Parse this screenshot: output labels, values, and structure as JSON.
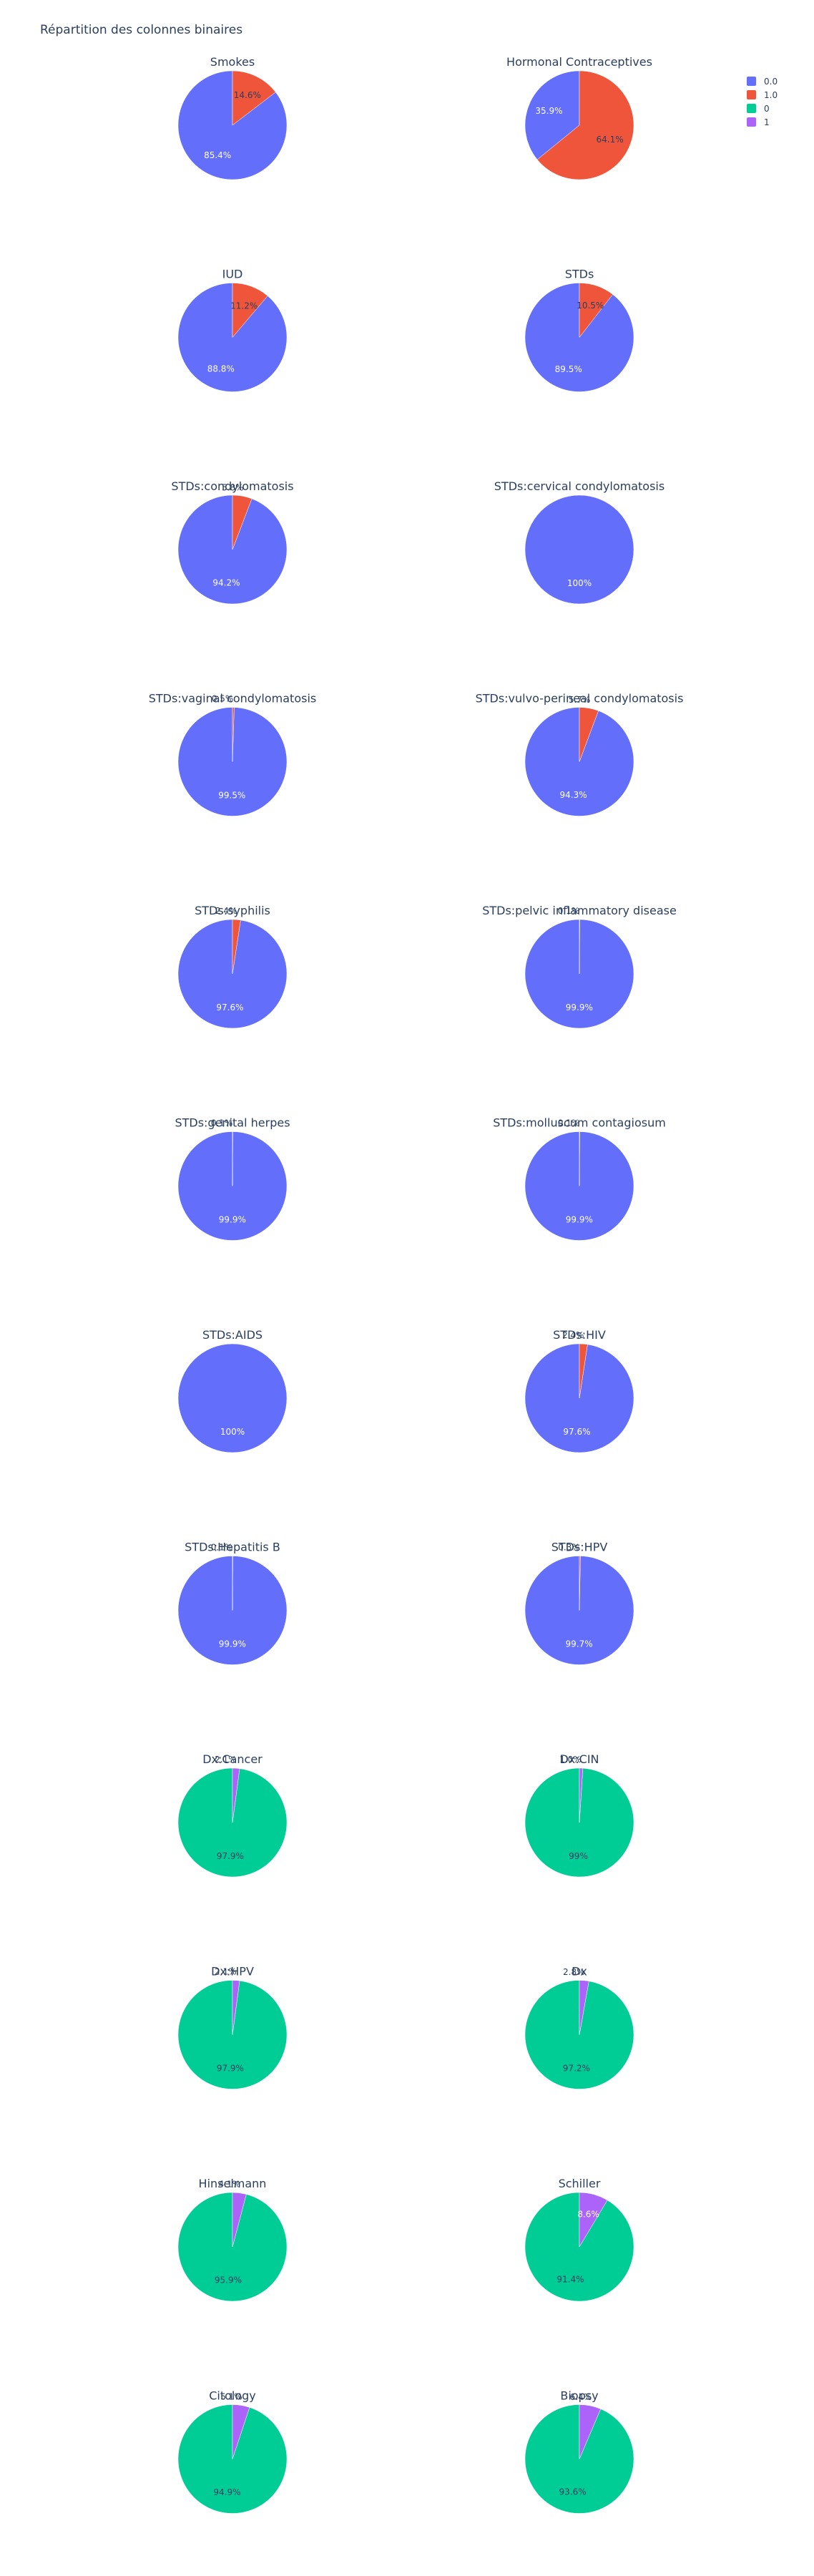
{
  "title": "Répartition des colonnes binaires",
  "legend": [
    {
      "label": "0.0",
      "color": "#636efa"
    },
    {
      "label": "1.0",
      "color": "#ef553b"
    },
    {
      "label": "0",
      "color": "#00cc96"
    },
    {
      "label": "1",
      "color": "#ab63fa"
    }
  ],
  "chart_data": {
    "type": "pie",
    "title": "Répartition des colonnes binaires",
    "legend_position": "top-right",
    "pies": [
      {
        "title": "Smokes",
        "slices": [
          {
            "label": "0.0",
            "value": 85.4
          },
          {
            "label": "1.0",
            "value": 14.6
          }
        ],
        "texts": [
          "85.4%",
          "14.6%"
        ]
      },
      {
        "title": "Hormonal Contraceptives",
        "slices": [
          {
            "label": "0.0",
            "value": 35.9
          },
          {
            "label": "1.0",
            "value": 64.1
          }
        ],
        "texts": [
          "35.9%",
          "64.1%"
        ]
      },
      {
        "title": "IUD",
        "slices": [
          {
            "label": "0.0",
            "value": 88.8
          },
          {
            "label": "1.0",
            "value": 11.2
          }
        ],
        "texts": [
          "88.8%",
          "11.2%"
        ]
      },
      {
        "title": "STDs",
        "slices": [
          {
            "label": "0.0",
            "value": 89.5
          },
          {
            "label": "1.0",
            "value": 10.5
          }
        ],
        "texts": [
          "89.5%",
          "10.5%"
        ]
      },
      {
        "title": "STDs:condylomatosis",
        "slices": [
          {
            "label": "0.0",
            "value": 94.2
          },
          {
            "label": "1.0",
            "value": 5.8
          }
        ],
        "texts": [
          "94.2%",
          "5.8%"
        ]
      },
      {
        "title": "STDs:cervical condylomatosis",
        "slices": [
          {
            "label": "0.0",
            "value": 100
          }
        ],
        "texts": [
          "100%"
        ]
      },
      {
        "title": "STDs:vaginal condylomatosis",
        "slices": [
          {
            "label": "0.0",
            "value": 99.5
          },
          {
            "label": "1.0",
            "value": 0.5
          }
        ],
        "texts": [
          "99.5%",
          "0.5%"
        ]
      },
      {
        "title": "STDs:vulvo-perineal condylomatosis",
        "slices": [
          {
            "label": "0.0",
            "value": 94.3
          },
          {
            "label": "1.0",
            "value": 5.7
          }
        ],
        "texts": [
          "94.3%",
          "5.7%"
        ]
      },
      {
        "title": "STDs:syphilis",
        "slices": [
          {
            "label": "0.0",
            "value": 97.6
          },
          {
            "label": "1.0",
            "value": 2.4
          }
        ],
        "texts": [
          "97.6%",
          "2.4%"
        ]
      },
      {
        "title": "STDs:pelvic inflammatory disease",
        "slices": [
          {
            "label": "0.0",
            "value": 99.9
          },
          {
            "label": "1.0",
            "value": 0.1
          }
        ],
        "texts": [
          "99.9%",
          "0.1%"
        ]
      },
      {
        "title": "STDs:genital herpes",
        "slices": [
          {
            "label": "0.0",
            "value": 99.9
          },
          {
            "label": "1.0",
            "value": 0.1
          }
        ],
        "texts": [
          "99.9%",
          "0.1%"
        ]
      },
      {
        "title": "STDs:molluscum contagiosum",
        "slices": [
          {
            "label": "0.0",
            "value": 99.9
          },
          {
            "label": "1.0",
            "value": 0.1
          }
        ],
        "texts": [
          "99.9%",
          "0.1%"
        ]
      },
      {
        "title": "STDs:AIDS",
        "slices": [
          {
            "label": "0.0",
            "value": 100
          }
        ],
        "texts": [
          "100%"
        ]
      },
      {
        "title": "STDs:HIV",
        "slices": [
          {
            "label": "0.0",
            "value": 97.6
          },
          {
            "label": "1.0",
            "value": 2.4
          }
        ],
        "texts": [
          "97.6%",
          "2.4%"
        ]
      },
      {
        "title": "STDs:Hepatitis B",
        "slices": [
          {
            "label": "0.0",
            "value": 99.9
          },
          {
            "label": "1.0",
            "value": 0.1
          }
        ],
        "texts": [
          "99.9%",
          "0.1%"
        ]
      },
      {
        "title": "STDs:HPV",
        "slices": [
          {
            "label": "0.0",
            "value": 99.7
          },
          {
            "label": "1.0",
            "value": 0.3
          }
        ],
        "texts": [
          "99.7%",
          "0.3%"
        ]
      },
      {
        "title": "Dx:Cancer",
        "slices": [
          {
            "label": "0",
            "value": 97.9
          },
          {
            "label": "1",
            "value": 2.1
          }
        ],
        "texts": [
          "97.9%",
          "2.1%"
        ]
      },
      {
        "title": "Dx:CIN",
        "slices": [
          {
            "label": "0",
            "value": 99
          },
          {
            "label": "1",
            "value": 1
          }
        ],
        "texts": [
          "99%",
          "1.0%"
        ]
      },
      {
        "title": "Dx:HPV",
        "slices": [
          {
            "label": "0",
            "value": 97.9
          },
          {
            "label": "1",
            "value": 2.1
          }
        ],
        "texts": [
          "97.9%",
          "2.1%"
        ]
      },
      {
        "title": "Dx",
        "slices": [
          {
            "label": "0",
            "value": 97.2
          },
          {
            "label": "1",
            "value": 2.8
          }
        ],
        "texts": [
          "97.2%",
          "2.8%"
        ]
      },
      {
        "title": "Hinselmann",
        "slices": [
          {
            "label": "0",
            "value": 95.9
          },
          {
            "label": "1",
            "value": 4.1
          }
        ],
        "texts": [
          "95.9%",
          "4.1%"
        ]
      },
      {
        "title": "Schiller",
        "slices": [
          {
            "label": "0",
            "value": 91.4
          },
          {
            "label": "1",
            "value": 8.6
          }
        ],
        "texts": [
          "91.4%",
          "8.6%"
        ]
      },
      {
        "title": "Citology",
        "slices": [
          {
            "label": "0",
            "value": 94.9
          },
          {
            "label": "1",
            "value": 5.1
          }
        ],
        "texts": [
          "94.9%",
          "5.1%"
        ]
      },
      {
        "title": "Biopsy",
        "slices": [
          {
            "label": "0",
            "value": 93.6
          },
          {
            "label": "1",
            "value": 6.4
          }
        ],
        "texts": [
          "93.6%",
          "6.4%"
        ]
      }
    ]
  }
}
